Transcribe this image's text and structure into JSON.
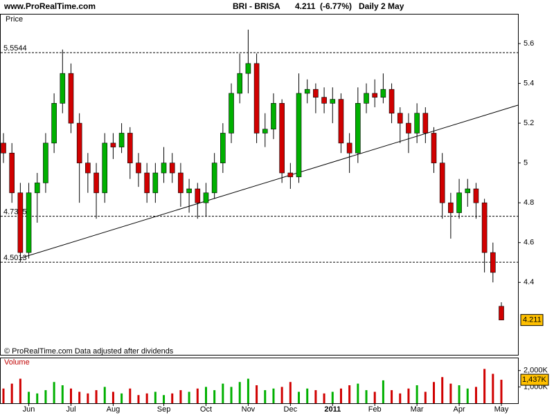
{
  "chart_data": {
    "type": "candlestick",
    "site": "www.ProRealTime.com",
    "symbol": "BRI - BRISA",
    "last": 4.211,
    "change": "(-6.77%)",
    "period": "Daily  2 May",
    "price_label": "Price",
    "volume_title": "Volume",
    "footer": "© ProRealTime.com  Data adjusted after dividends",
    "categories": [
      null,
      null,
      null,
      "Jun",
      null,
      null,
      null,
      null,
      "Jul",
      null,
      null,
      null,
      null,
      "Aug",
      null,
      null,
      null,
      null,
      null,
      "Sep",
      null,
      null,
      null,
      null,
      "Oct",
      null,
      null,
      null,
      null,
      "Nov",
      null,
      null,
      null,
      null,
      "Dec",
      null,
      null,
      null,
      null,
      "2011",
      null,
      null,
      null,
      null,
      "Feb",
      null,
      null,
      null,
      null,
      "Mar",
      null,
      null,
      null,
      null,
      "Apr",
      null,
      null,
      null,
      null,
      "May"
    ],
    "open": [
      5.1,
      5.05,
      4.85,
      4.55,
      4.85,
      4.9,
      5.1,
      5.3,
      5.45,
      5.2,
      5.0,
      4.95,
      4.85,
      5.1,
      5.08,
      5.15,
      5.0,
      4.95,
      4.85,
      4.95,
      5.0,
      4.95,
      4.85,
      4.87,
      4.8,
      4.85,
      5.0,
      5.15,
      5.35,
      5.45,
      5.5,
      5.15,
      5.17,
      5.3,
      4.95,
      4.93,
      5.35,
      5.37,
      5.33,
      5.3,
      5.32,
      5.1,
      5.05,
      5.3,
      5.35,
      5.33,
      5.37,
      5.25,
      5.2,
      5.15,
      5.25,
      5.15,
      5.0,
      4.8,
      4.75,
      4.85,
      4.87,
      4.8,
      4.55,
      4.28
    ],
    "high": [
      5.15,
      5.1,
      4.9,
      4.9,
      4.95,
      5.15,
      5.35,
      5.57,
      5.5,
      5.25,
      5.05,
      5.0,
      5.15,
      5.15,
      5.2,
      5.18,
      5.05,
      5.0,
      5.0,
      5.08,
      5.05,
      5.0,
      4.92,
      4.9,
      4.9,
      5.05,
      5.2,
      5.4,
      5.55,
      5.67,
      5.55,
      5.25,
      5.35,
      5.32,
      5.0,
      5.45,
      5.42,
      5.4,
      5.38,
      5.38,
      5.35,
      5.15,
      5.38,
      5.4,
      5.42,
      5.45,
      5.4,
      5.28,
      5.25,
      5.3,
      5.28,
      5.18,
      5.05,
      4.85,
      4.92,
      4.92,
      4.9,
      4.82,
      4.6,
      4.3
    ],
    "low": [
      5.0,
      4.8,
      4.5,
      4.52,
      4.7,
      4.85,
      5.05,
      5.25,
      5.15,
      4.8,
      4.85,
      4.72,
      4.8,
      5.02,
      5.05,
      4.92,
      4.88,
      4.8,
      4.8,
      4.9,
      4.9,
      4.78,
      4.75,
      4.72,
      4.73,
      4.82,
      4.95,
      5.1,
      5.3,
      5.35,
      5.1,
      5.08,
      5.12,
      4.9,
      4.87,
      4.9,
      5.3,
      5.25,
      5.25,
      5.2,
      5.05,
      4.95,
      5.0,
      5.25,
      5.28,
      5.3,
      5.2,
      5.1,
      5.05,
      5.1,
      5.1,
      4.95,
      4.72,
      4.62,
      4.72,
      4.78,
      4.72,
      4.45,
      4.4,
      4.211
    ],
    "close": [
      5.05,
      4.85,
      4.55,
      4.85,
      4.9,
      5.1,
      5.3,
      5.45,
      5.2,
      5.0,
      4.95,
      4.85,
      5.1,
      5.08,
      5.15,
      5.0,
      4.95,
      4.85,
      4.95,
      5.0,
      4.95,
      4.85,
      4.87,
      4.8,
      4.85,
      5.0,
      5.15,
      5.35,
      5.45,
      5.5,
      5.15,
      5.17,
      5.3,
      4.95,
      4.93,
      5.35,
      5.37,
      5.33,
      5.3,
      5.32,
      5.1,
      5.05,
      5.3,
      5.35,
      5.33,
      5.37,
      5.25,
      5.2,
      5.15,
      5.25,
      5.15,
      5.0,
      4.8,
      4.75,
      4.85,
      4.87,
      4.8,
      4.55,
      4.45,
      4.211
    ],
    "volume": [
      900,
      1200,
      1500,
      700,
      600,
      800,
      1300,
      1100,
      900,
      700,
      600,
      800,
      1000,
      700,
      600,
      900,
      500,
      600,
      700,
      500,
      600,
      800,
      700,
      900,
      1000,
      800,
      1200,
      1000,
      1300,
      1500,
      1100,
      800,
      900,
      1000,
      1300,
      700,
      900,
      800,
      600,
      700,
      900,
      1100,
      1200,
      800,
      700,
      1400,
      800,
      600,
      900,
      1100,
      700,
      1300,
      1600,
      1200,
      1100,
      900,
      1000,
      2100,
      1800,
      1437
    ],
    "last_volume_label": "1,437K",
    "up_color": "#00b000",
    "down_color": "#d00000",
    "levels": [
      5.5544,
      4.7325,
      4.5013
    ],
    "ylim": [
      4.036,
      5.746
    ],
    "yticks": [
      4.4,
      4.6,
      4.8,
      5,
      5.2,
      5.4,
      5.6
    ],
    "y2lim": [
      0,
      2750
    ],
    "y2ticks": [
      {
        "value": 1000,
        "label": "1,000K"
      },
      {
        "value": 2000,
        "label": "2,000K"
      }
    ]
  }
}
